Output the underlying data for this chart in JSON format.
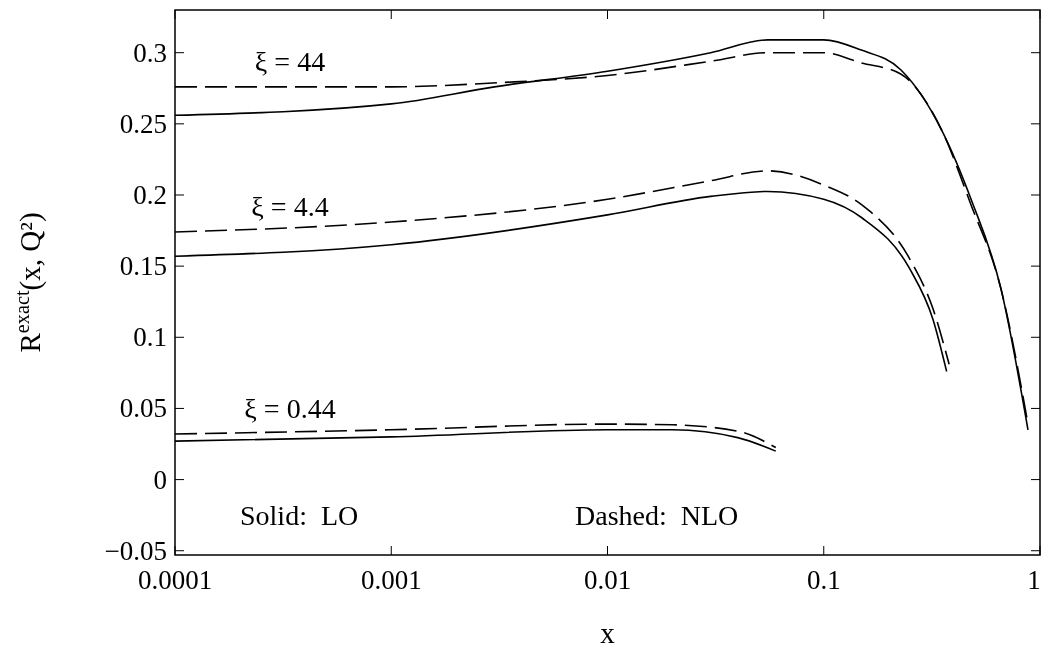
{
  "chart_data": {
    "type": "line",
    "xlabel": "x",
    "ylabel": "R$^{exact}$(x, Q²)",
    "log": "x",
    "grid": false,
    "xlim": [
      0.0001,
      1
    ],
    "xticks": [
      0.0001,
      0.001,
      0.01,
      0.1,
      1
    ],
    "ylim": [
      -0.053,
      0.33
    ],
    "yticks": [
      {
        "value": -0.05,
        "label": "−0.05"
      },
      0,
      0.05,
      0.1,
      0.15,
      0.2,
      0.25,
      0.3
    ],
    "series": [
      {
        "color": "#000000",
        "line_style": "solid",
        "x": [
          0.0001,
          0.001,
          0.003,
          0.01,
          0.03,
          0.055,
          0.1,
          0.148,
          0.227,
          0.35,
          0.48,
          0.66,
          0.88
        ],
        "values": [
          0.256,
          0.264,
          0.276,
          0.287,
          0.3,
          0.309,
          0.309,
          0.302,
          0.288,
          0.246,
          0.197,
          0.134,
          0.035
        ]
      },
      {
        "color": "#000000",
        "line_style": "dashed",
        "x": [
          0.0001,
          0.001,
          0.0032,
          0.01,
          0.03,
          0.055,
          0.1,
          0.148,
          0.227,
          0.35,
          0.48,
          0.66,
          0.88
        ],
        "values": [
          0.276,
          0.276,
          0.279,
          0.284,
          0.294,
          0.3,
          0.3,
          0.293,
          0.285,
          0.246,
          0.193,
          0.134,
          0.039
        ]
      },
      {
        "color": "#000000",
        "line_style": "solid",
        "x": [
          0.0001,
          0.001,
          0.01,
          0.03,
          0.055,
          0.1,
          0.15,
          0.25,
          0.32,
          0.37
        ],
        "values": [
          0.157,
          0.165,
          0.186,
          0.199,
          0.2025,
          0.197,
          0.184,
          0.148,
          0.1125,
          0.076
        ]
      },
      {
        "color": "#000000",
        "line_style": "dashed",
        "x": [
          0.0001,
          0.001,
          0.01,
          0.03,
          0.055,
          0.1,
          0.15,
          0.25,
          0.32,
          0.38
        ],
        "values": [
          0.174,
          0.181,
          0.197,
          0.21,
          0.217,
          0.207,
          0.193,
          0.155,
          0.12,
          0.081
        ]
      },
      {
        "color": "#000000",
        "line_style": "solid",
        "x": [
          0.0001,
          0.001,
          0.01,
          0.02,
          0.04,
          0.06
        ],
        "values": [
          0.027,
          0.03,
          0.035,
          0.035,
          0.0295,
          0.02
        ]
      },
      {
        "color": "#000000",
        "line_style": "dashed",
        "x": [
          0.0001,
          0.001,
          0.01,
          0.02,
          0.04,
          0.06
        ],
        "values": [
          0.032,
          0.035,
          0.039,
          0.0385,
          0.034,
          0.0225
        ]
      }
    ],
    "annotations": [
      "ξ = 44",
      "ξ = 4.4",
      "ξ = 0.44",
      "Solid:  LO",
      "Dashed:  NLO"
    ]
  }
}
